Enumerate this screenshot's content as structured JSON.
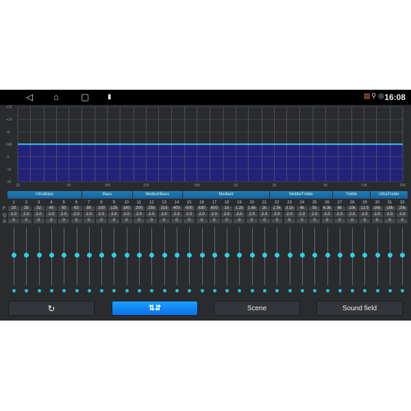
{
  "statusbar": {
    "time": "16:08",
    "icons": [
      "back-icon",
      "home-icon",
      "recents-icon",
      "usb-icon",
      "cast-icon",
      "location-icon",
      "hotspot-icon"
    ]
  },
  "chart_data": {
    "type": "line",
    "x_scale": "log",
    "xlim": [
      20,
      20000
    ],
    "ylim": [
      -15,
      15
    ],
    "y_ticks": [
      "+15",
      "+10",
      "+5",
      "0dB",
      "-5",
      "-10",
      "-15"
    ],
    "x_ticks": [
      {
        "v": 20,
        "l": "20"
      },
      {
        "v": 50,
        "l": "50"
      },
      {
        "v": 100,
        "l": "100"
      },
      {
        "v": 200,
        "l": "200"
      },
      {
        "v": 500,
        "l": "500"
      },
      {
        "v": 1000,
        "l": "1K"
      },
      {
        "v": 2000,
        "l": "2K"
      },
      {
        "v": 5000,
        "l": "5K"
      },
      {
        "v": 10000,
        "l": "10K"
      },
      {
        "v": 20000,
        "l": "20K"
      }
    ],
    "series": [
      {
        "x": [
          20,
          20000
        ],
        "y": [
          0,
          0
        ]
      }
    ],
    "grid": true,
    "colors": {
      "line": "#3fc7f0",
      "fill": "#22227a"
    }
  },
  "row_labels": {
    "f": "F:",
    "q": "Q:",
    "g": "G:"
  },
  "groups": [
    {
      "label": "UltraBass",
      "span": 6
    },
    {
      "label": "Bass",
      "span": 4
    },
    {
      "label": "MediumBass",
      "span": 4
    },
    {
      "label": "Mediant",
      "span": 7
    },
    {
      "label": "MiddleTreble",
      "span": 5
    },
    {
      "label": "Treble",
      "span": 3
    },
    {
      "label": "UltraTreble",
      "span": 3
    }
  ],
  "bands": [
    {
      "n": "1",
      "f": "20",
      "q": "2.0",
      "g": "0"
    },
    {
      "n": "2",
      "f": "25",
      "q": "2.0",
      "g": "0"
    },
    {
      "n": "3",
      "f": "32",
      "q": "2.0",
      "g": "0"
    },
    {
      "n": "4",
      "f": "40",
      "q": "2.0",
      "g": "0"
    },
    {
      "n": "5",
      "f": "50",
      "q": "2.0",
      "g": "0"
    },
    {
      "n": "6",
      "f": "63",
      "q": "2.0",
      "g": "0"
    },
    {
      "n": "7",
      "f": "80",
      "q": "2.0",
      "g": "0"
    },
    {
      "n": "8",
      "f": "100",
      "q": "2.0",
      "g": "0"
    },
    {
      "n": "9",
      "f": "125",
      "q": "2.0",
      "g": "0"
    },
    {
      "n": "10",
      "f": "160",
      "q": "2.0",
      "g": "0"
    },
    {
      "n": "11",
      "f": "200",
      "q": "2.0",
      "g": "0"
    },
    {
      "n": "12",
      "f": "250",
      "q": "2.0",
      "g": "0"
    },
    {
      "n": "13",
      "f": "315",
      "q": "2.0",
      "g": "0"
    },
    {
      "n": "14",
      "f": "400",
      "q": "2.0",
      "g": "0"
    },
    {
      "n": "15",
      "f": "500",
      "q": "2.0",
      "g": "0"
    },
    {
      "n": "16",
      "f": "630",
      "q": "2.0",
      "g": "0"
    },
    {
      "n": "17",
      "f": "800",
      "q": "2.0",
      "g": "0"
    },
    {
      "n": "18",
      "f": "1k",
      "q": "2.0",
      "g": "0"
    },
    {
      "n": "19",
      "f": "1.2k",
      "q": "2.0",
      "g": "0"
    },
    {
      "n": "20",
      "f": "1.6k",
      "q": "2.0",
      "g": "0"
    },
    {
      "n": "21",
      "f": "2k",
      "q": "2.0",
      "g": "0"
    },
    {
      "n": "22",
      "f": "2.5k",
      "q": "2.0",
      "g": "0"
    },
    {
      "n": "23",
      "f": "3.1k",
      "q": "2.0",
      "g": "0"
    },
    {
      "n": "24",
      "f": "4k",
      "q": "2.0",
      "g": "0"
    },
    {
      "n": "25",
      "f": "5k",
      "q": "2.0",
      "g": "0"
    },
    {
      "n": "26",
      "f": "6.3k",
      "q": "2.0",
      "g": "0"
    },
    {
      "n": "27",
      "f": "8k",
      "q": "2.0",
      "g": "0"
    },
    {
      "n": "28",
      "f": "10k",
      "q": "2.0",
      "g": "0"
    },
    {
      "n": "29",
      "f": "12.5",
      "q": "2.0",
      "g": "0"
    },
    {
      "n": "30",
      "f": "16k",
      "q": "2.0",
      "g": "0"
    },
    {
      "n": "31",
      "f": "18k",
      "q": "2.0",
      "g": "0"
    },
    {
      "n": "32",
      "f": "20k",
      "q": "2.0",
      "g": "0"
    }
  ],
  "buttons": {
    "reset": {
      "icon": "reset-icon"
    },
    "eq": {
      "icon": "equalizer-icon"
    },
    "scene": "Scene",
    "sound_field": "Sound field"
  }
}
